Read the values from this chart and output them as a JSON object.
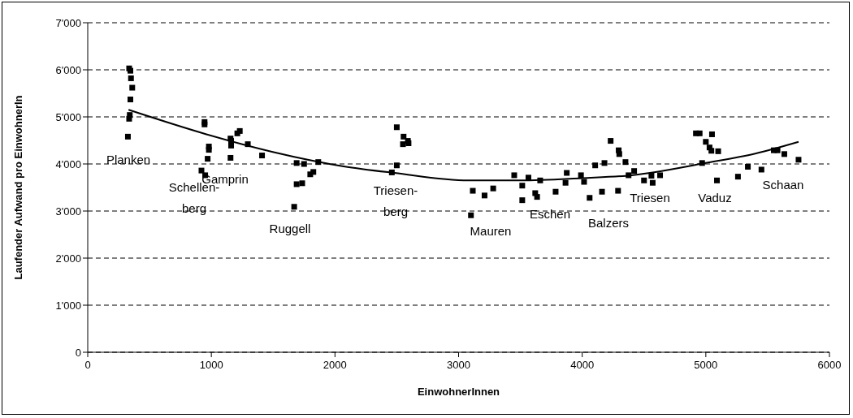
{
  "chart_data": {
    "type": "scatter",
    "xlabel": "EinwohnerInnen",
    "ylabel": "Laufender Aufwand pro EinwohnerIn",
    "xlim": [
      0,
      6000
    ],
    "xticks": [
      0,
      1000,
      2000,
      3000,
      4000,
      5000,
      6000
    ],
    "ylim": [
      0,
      7000
    ],
    "yticks": [
      {
        "value": 0,
        "label": "0"
      },
      {
        "value": 1000,
        "label": "1'000"
      },
      {
        "value": 2000,
        "label": "2'000"
      },
      {
        "value": 3000,
        "label": "3'000"
      },
      {
        "value": 4000,
        "label": "4'000"
      },
      {
        "value": 5000,
        "label": "5'000"
      },
      {
        "value": 6000,
        "label": "6'000"
      },
      {
        "value": 7000,
        "label": "7'000"
      }
    ],
    "grid": "y",
    "legend": false,
    "marker": "square",
    "series": [
      {
        "color": "#000000",
        "x": [
          335,
          345,
          350,
          360,
          345,
          340,
          335,
          325,
          945,
          945,
          980,
          980,
          970,
          920,
          950,
          1155,
          1160,
          1160,
          1210,
          1230,
          1295,
          1410,
          1155,
          1690,
          1750,
          1865,
          1825,
          1800,
          1735,
          1690,
          1670,
          2500,
          2555,
          2550,
          2595,
          2590,
          2500,
          2460,
          3115,
          3210,
          3280,
          3100,
          3450,
          3515,
          3565,
          3660,
          3620,
          3635,
          3515,
          3785,
          3875,
          3865,
          3990,
          4015,
          4060,
          4105,
          4180,
          4160,
          4230,
          4295,
          4300,
          4350,
          4290,
          4375,
          4420,
          4500,
          4560,
          4570,
          4630,
          4920,
          4950,
          5050,
          5000,
          5030,
          5045,
          5100,
          4970,
          5090,
          5260,
          5340,
          5450,
          5550,
          5580,
          5635,
          5750
        ],
        "values": [
          6030,
          5980,
          5820,
          5620,
          5370,
          5040,
          4960,
          4580,
          4890,
          4840,
          4370,
          4300,
          4110,
          3860,
          3760,
          4540,
          4490,
          4390,
          4650,
          4700,
          4420,
          4180,
          4130,
          4020,
          4000,
          4040,
          3830,
          3780,
          3590,
          3570,
          3090,
          4780,
          4580,
          4420,
          4440,
          4490,
          3970,
          3820,
          3430,
          3330,
          3480,
          2910,
          3760,
          3540,
          3710,
          3650,
          3380,
          3300,
          3230,
          3410,
          3810,
          3600,
          3760,
          3620,
          3280,
          3970,
          4020,
          3410,
          4490,
          4290,
          4210,
          4040,
          3430,
          3760,
          3850,
          3650,
          3750,
          3600,
          3760,
          4650,
          4650,
          4630,
          4470,
          4350,
          4280,
          4270,
          4020,
          3650,
          3730,
          3940,
          3880,
          4290,
          4290,
          4210,
          4090
        ]
      },
      {
        "type": "line",
        "marker": "none",
        "color": "#000000",
        "x": [
          330,
          960,
          1490,
          2070,
          2480,
          3080,
          3500,
          4000,
          4400,
          5000,
          5400,
          5750
        ],
        "values": [
          5150,
          4630,
          4260,
          3950,
          3810,
          3650,
          3650,
          3700,
          3760,
          4020,
          4220,
          4470
        ]
      }
    ],
    "annotations": [
      "Planken",
      "Schellen-\nberg",
      "Gamprin",
      "Ruggell",
      "Triesen-\nberg",
      "Mauren",
      "Eschen",
      "Balzers",
      "Triesen",
      "Vaduz",
      "Schaan"
    ]
  }
}
